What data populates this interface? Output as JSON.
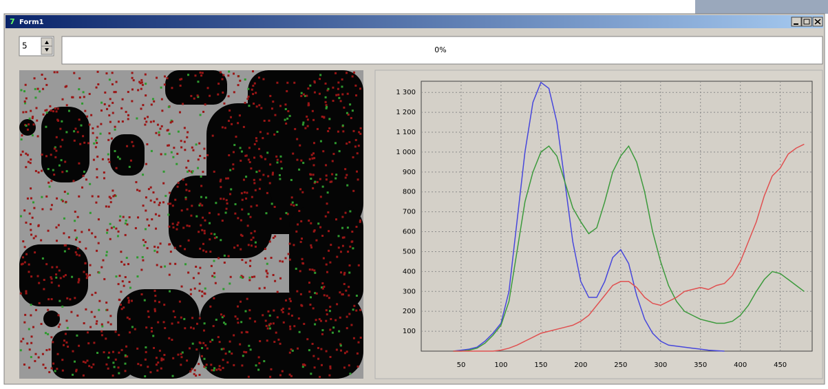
{
  "window": {
    "title": "Form1"
  },
  "spinner": {
    "value": "5"
  },
  "progress": {
    "label": "0%"
  },
  "chart_data": {
    "type": "line",
    "x": [
      40,
      50,
      60,
      70,
      80,
      90,
      100,
      110,
      120,
      130,
      140,
      150,
      160,
      170,
      180,
      190,
      200,
      210,
      220,
      230,
      240,
      250,
      260,
      270,
      280,
      290,
      300,
      310,
      320,
      330,
      340,
      350,
      360,
      370,
      380,
      390,
      400,
      410,
      420,
      430,
      440,
      450,
      460,
      470,
      480
    ],
    "series": [
      {
        "color": "#4646dc",
        "values": [
          0,
          5,
          10,
          20,
          50,
          90,
          140,
          300,
          650,
          1000,
          1250,
          1350,
          1320,
          1150,
          850,
          550,
          350,
          270,
          270,
          350,
          470,
          510,
          440,
          280,
          160,
          90,
          50,
          30,
          25,
          20,
          15,
          10,
          5,
          2,
          0,
          null,
          null,
          null,
          null,
          null,
          null,
          null,
          null,
          null,
          null
        ]
      },
      {
        "color": "#3c9a3c",
        "values": [
          0,
          0,
          5,
          15,
          40,
          80,
          130,
          250,
          500,
          750,
          900,
          1000,
          1030,
          980,
          850,
          720,
          650,
          590,
          620,
          750,
          900,
          980,
          1030,
          950,
          800,
          600,
          450,
          330,
          250,
          200,
          180,
          160,
          150,
          140,
          140,
          150,
          180,
          230,
          300,
          360,
          400,
          390,
          360,
          330,
          300
        ]
      },
      {
        "color": "#e05050",
        "values": [
          0,
          0,
          0,
          0,
          0,
          0,
          5,
          15,
          30,
          50,
          70,
          90,
          100,
          110,
          120,
          130,
          150,
          180,
          230,
          280,
          330,
          350,
          350,
          320,
          270,
          240,
          230,
          250,
          270,
          300,
          310,
          320,
          310,
          330,
          340,
          380,
          450,
          550,
          650,
          780,
          880,
          920,
          990,
          1020,
          1040
        ]
      }
    ],
    "xlim": [
      0,
      490
    ],
    "ylim": [
      0,
      1356
    ],
    "xticks": [
      50,
      100,
      150,
      200,
      250,
      300,
      350,
      400,
      450
    ],
    "yticks": [
      100,
      200,
      300,
      400,
      500,
      600,
      700,
      800,
      900,
      {
        "value": 1000,
        "label": "1 000"
      },
      {
        "value": 1100,
        "label": "1 100"
      },
      {
        "value": 1200,
        "label": "1 200"
      },
      {
        "value": 1300,
        "label": "1 300"
      }
    ],
    "grid": true
  }
}
